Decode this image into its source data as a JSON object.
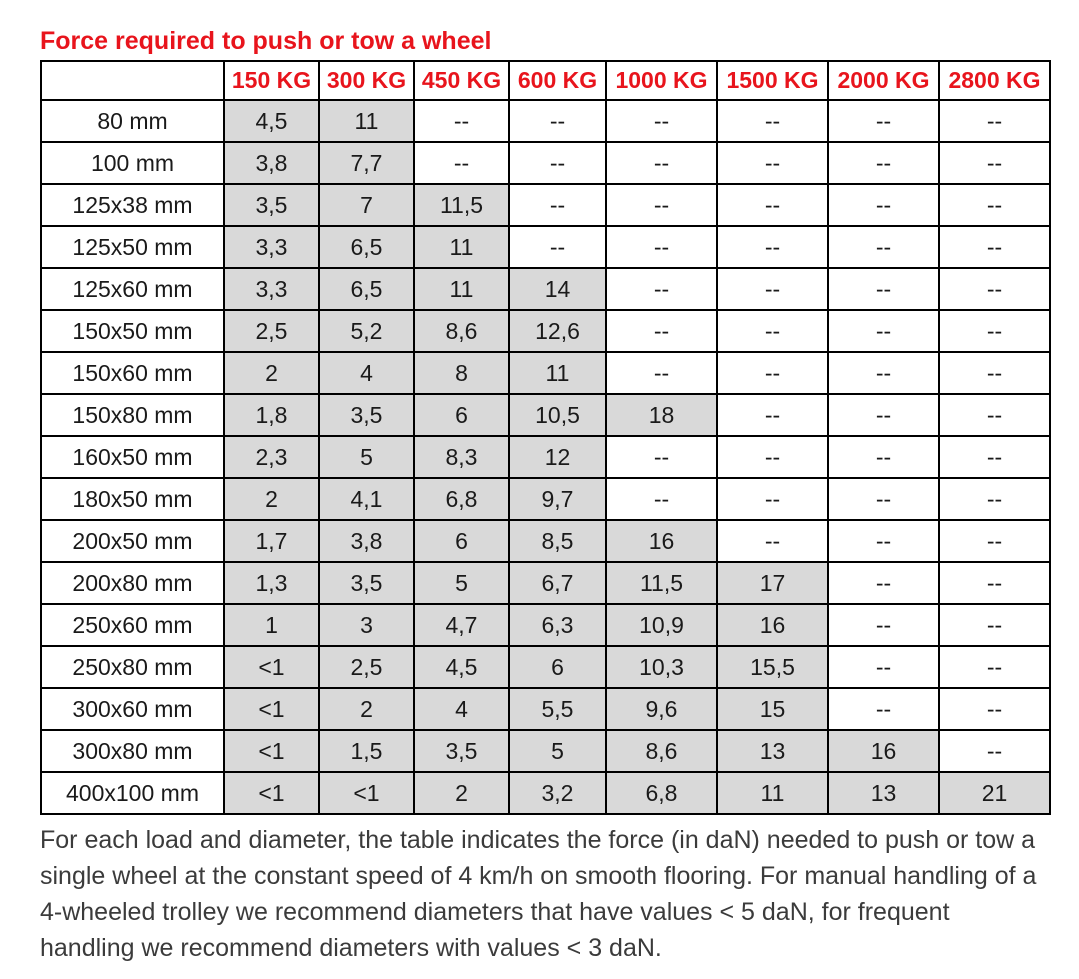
{
  "title": "Force required to push or tow a wheel",
  "table": {
    "corner_label": "",
    "columns": [
      "150 KG",
      "300 KG",
      "450 KG",
      "600 KG",
      "1000 KG",
      "1500 KG",
      "2000 KG",
      "2800 KG"
    ],
    "empty_marker": "--",
    "rows": [
      {
        "label": "80 mm",
        "values": [
          "4,5",
          "11",
          "--",
          "--",
          "--",
          "--",
          "--",
          "--"
        ]
      },
      {
        "label": "100 mm",
        "values": [
          "3,8",
          "7,7",
          "--",
          "--",
          "--",
          "--",
          "--",
          "--"
        ]
      },
      {
        "label": "125x38 mm",
        "values": [
          "3,5",
          "7",
          "11,5",
          "--",
          "--",
          "--",
          "--",
          "--"
        ]
      },
      {
        "label": "125x50 mm",
        "values": [
          "3,3",
          "6,5",
          "11",
          "--",
          "--",
          "--",
          "--",
          "--"
        ]
      },
      {
        "label": "125x60 mm",
        "values": [
          "3,3",
          "6,5",
          "11",
          "14",
          "--",
          "--",
          "--",
          "--"
        ]
      },
      {
        "label": "150x50 mm",
        "values": [
          "2,5",
          "5,2",
          "8,6",
          "12,6",
          "--",
          "--",
          "--",
          "--"
        ]
      },
      {
        "label": "150x60 mm",
        "values": [
          "2",
          "4",
          "8",
          "11",
          "--",
          "--",
          "--",
          "--"
        ]
      },
      {
        "label": "150x80 mm",
        "values": [
          "1,8",
          "3,5",
          "6",
          "10,5",
          "18",
          "--",
          "--",
          "--"
        ]
      },
      {
        "label": "160x50 mm",
        "values": [
          "2,3",
          "5",
          "8,3",
          "12",
          "--",
          "--",
          "--",
          "--"
        ]
      },
      {
        "label": "180x50 mm",
        "values": [
          "2",
          "4,1",
          "6,8",
          "9,7",
          "--",
          "--",
          "--",
          "--"
        ]
      },
      {
        "label": "200x50 mm",
        "values": [
          "1,7",
          "3,8",
          "6",
          "8,5",
          "16",
          "--",
          "--",
          "--"
        ]
      },
      {
        "label": "200x80 mm",
        "values": [
          "1,3",
          "3,5",
          "5",
          "6,7",
          "11,5",
          "17",
          "--",
          "--"
        ]
      },
      {
        "label": "250x60 mm",
        "values": [
          "1",
          "3",
          "4,7",
          "6,3",
          "10,9",
          "16",
          "--",
          "--"
        ]
      },
      {
        "label": "250x80 mm",
        "values": [
          "<1",
          "2,5",
          "4,5",
          "6",
          "10,3",
          "15,5",
          "--",
          "--"
        ]
      },
      {
        "label": "300x60 mm",
        "values": [
          "<1",
          "2",
          "4",
          "5,5",
          "9,6",
          "15",
          "--",
          "--"
        ]
      },
      {
        "label": "300x80 mm",
        "values": [
          "<1",
          "1,5",
          "3,5",
          "5",
          "8,6",
          "13",
          "16",
          "--"
        ]
      },
      {
        "label": "400x100 mm",
        "values": [
          "<1",
          "<1",
          "2",
          "3,2",
          "6,8",
          "11",
          "13",
          "21"
        ]
      }
    ]
  },
  "footer": "For each load and diameter, the table indicates the force (in daN) needed to push or tow a single wheel at the constant speed of 4 km/h on smooth flooring. For manual handling of a 4-wheeled trolley we recommend diameters that have values < 5 daN, for frequent handling we recommend diameters with values < 3 daN.",
  "colors": {
    "header_red": "#e8141c",
    "filled_cell_gray": "#d9d9d9",
    "border_black": "#000000",
    "body_text": "#3b3b3b"
  }
}
